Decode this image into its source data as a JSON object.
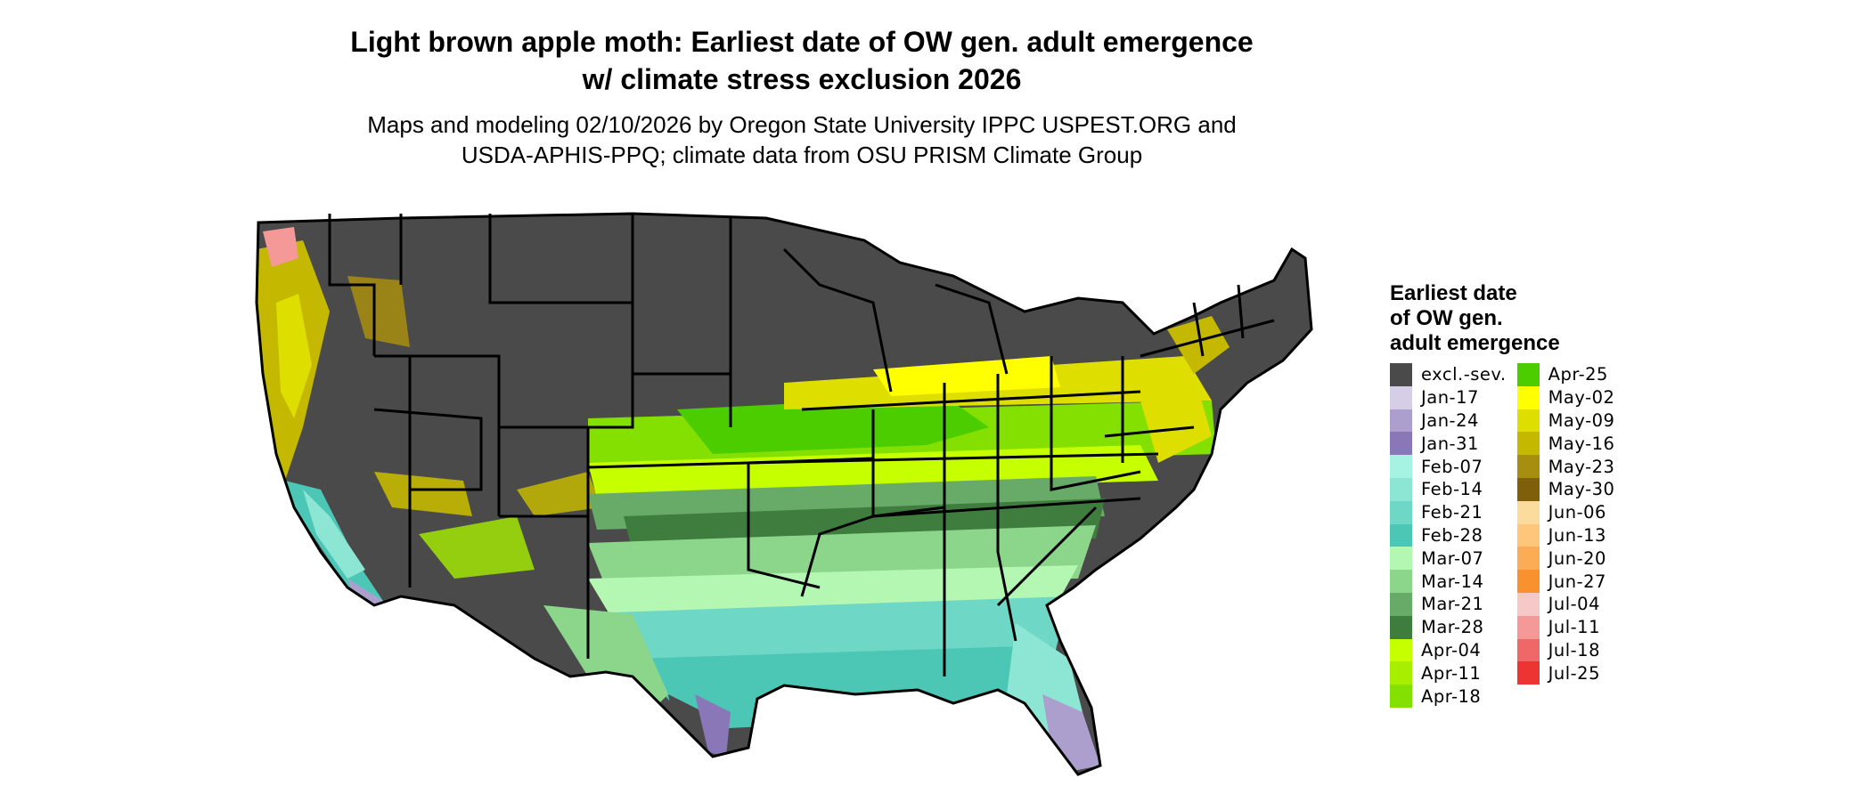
{
  "title": {
    "line1": "Light brown apple moth: Earliest date of OW gen. adult emergence",
    "line2": "w/ climate stress exclusion 2026"
  },
  "subtitle": {
    "line1": "Maps and modeling 02/10/2026 by Oregon State University IPPC USPEST.ORG and",
    "line2": "USDA-APHIS-PPQ; climate data from OSU PRISM Climate Group"
  },
  "legend": {
    "title_lines": [
      "Earliest date",
      "of OW gen.",
      "adult emergence"
    ],
    "items": [
      {
        "label": "excl.-sev.",
        "color": "#4a4a4a"
      },
      {
        "label": "Jan-17",
        "color": "#d6cde6"
      },
      {
        "label": "Jan-24",
        "color": "#ac9fcd"
      },
      {
        "label": "Jan-31",
        "color": "#8a77b8"
      },
      {
        "label": "Feb-07",
        "color": "#a6f3e3"
      },
      {
        "label": "Feb-14",
        "color": "#8de6d4"
      },
      {
        "label": "Feb-21",
        "color": "#6fd7c5"
      },
      {
        "label": "Feb-28",
        "color": "#4cc7b6"
      },
      {
        "label": "Mar-07",
        "color": "#b3f7b3"
      },
      {
        "label": "Mar-14",
        "color": "#8cd68c"
      },
      {
        "label": "Mar-21",
        "color": "#68aa68"
      },
      {
        "label": "Mar-28",
        "color": "#3f7d3f"
      },
      {
        "label": "Apr-04",
        "color": "#c5ff00"
      },
      {
        "label": "Apr-11",
        "color": "#a8ee00"
      },
      {
        "label": "Apr-18",
        "color": "#83e000"
      },
      {
        "label": "Apr-25",
        "color": "#4ccd00"
      },
      {
        "label": "May-02",
        "color": "#ffff00"
      },
      {
        "label": "May-09",
        "color": "#dede00"
      },
      {
        "label": "May-16",
        "color": "#c5b800"
      },
      {
        "label": "May-23",
        "color": "#a88e0e"
      },
      {
        "label": "May-30",
        "color": "#7f5f0a"
      },
      {
        "label": "Jun-06",
        "color": "#fcdc9c"
      },
      {
        "label": "Jun-13",
        "color": "#fdc67a"
      },
      {
        "label": "Jun-20",
        "color": "#fcac55"
      },
      {
        "label": "Jun-27",
        "color": "#f9922e"
      },
      {
        "label": "Jul-04",
        "color": "#f7c8c8"
      },
      {
        "label": "Jul-11",
        "color": "#f49898"
      },
      {
        "label": "Jul-18",
        "color": "#f06767"
      },
      {
        "label": "Jul-25",
        "color": "#ee3333"
      }
    ]
  }
}
